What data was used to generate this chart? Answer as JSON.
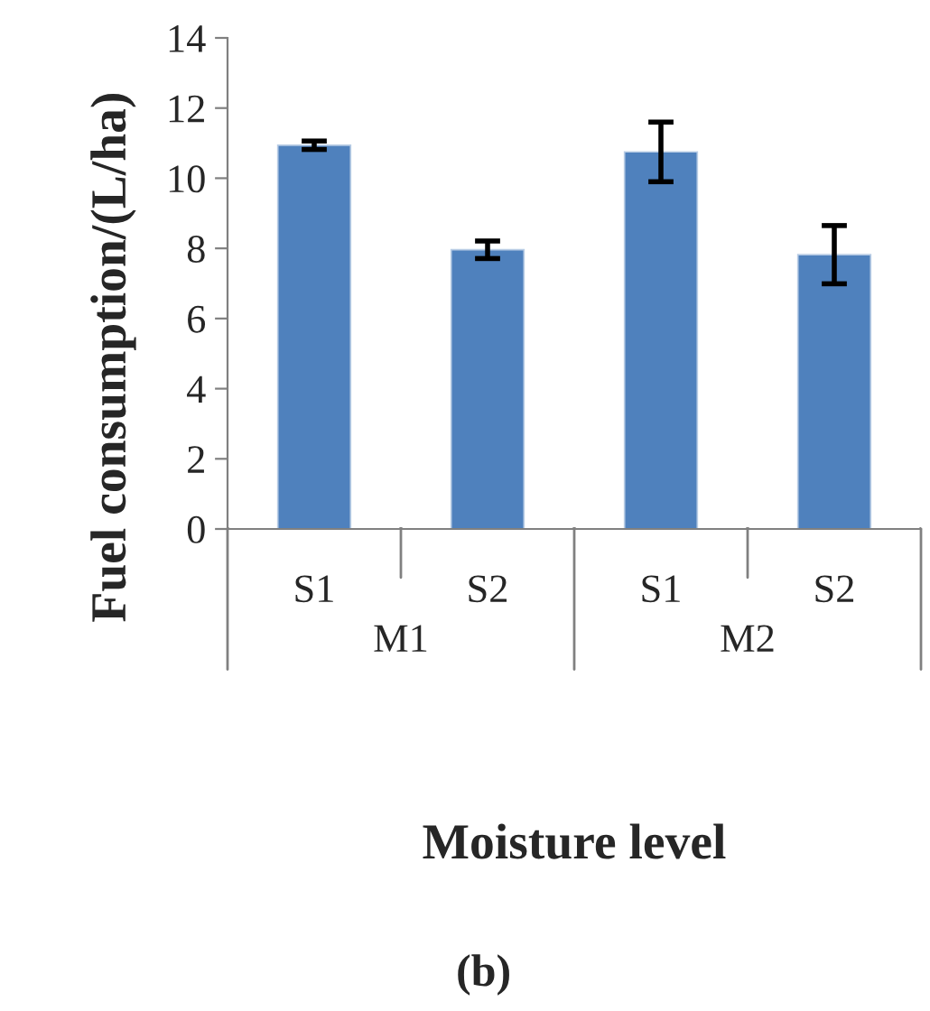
{
  "chart_data": {
    "type": "bar",
    "xlabel": "Moisture level",
    "ylabel": "Fuel consumption/(L/ha)",
    "categories": [
      "S1",
      "S2",
      "S1",
      "S2"
    ],
    "values": [
      10.94,
      7.96,
      10.75,
      7.82
    ],
    "errors": [
      0.12,
      0.25,
      0.85,
      0.83
    ],
    "color": "#4f81bd",
    "ylim": [
      0,
      14
    ],
    "yticks": [
      0,
      2,
      4,
      6,
      8,
      10,
      12,
      14
    ],
    "grid": false,
    "annotations": [
      "M1",
      "M2",
      "(b)"
    ]
  }
}
